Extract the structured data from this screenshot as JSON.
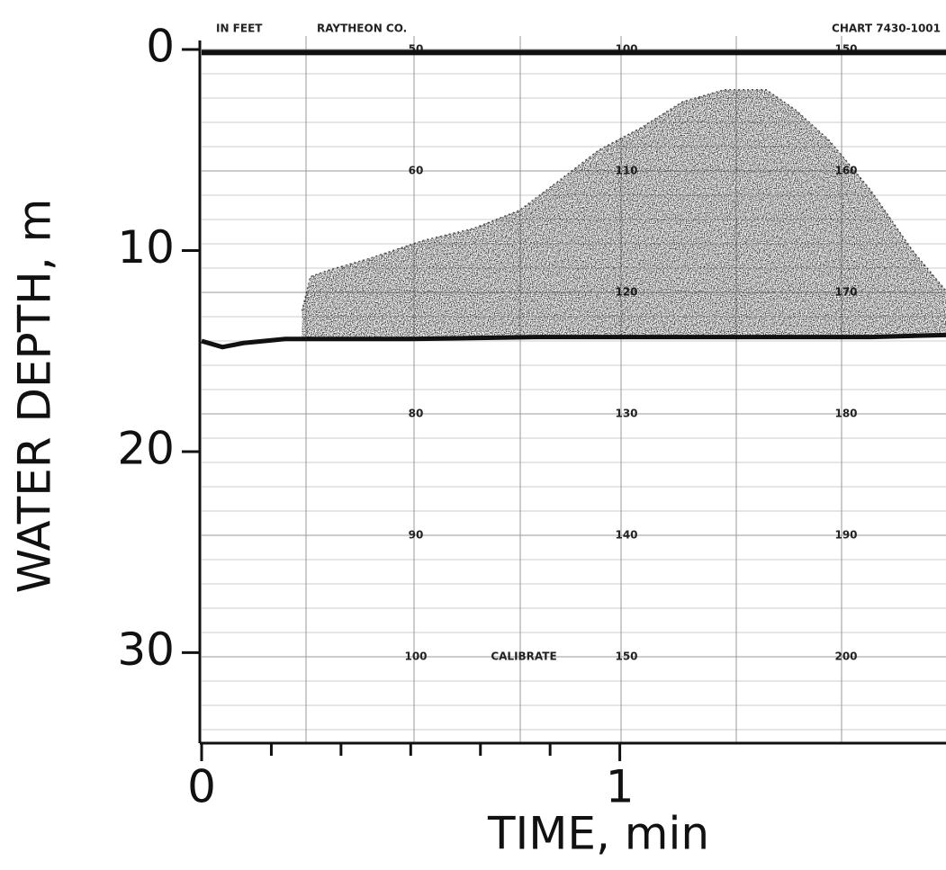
{
  "chart_data": {
    "type": "echogram",
    "y_label": "WATER DEPTH, m",
    "x_label": "TIME, min",
    "ylim": [
      0,
      34.5
    ],
    "yticks": [
      0,
      10,
      20,
      30
    ],
    "xlim": [
      0,
      1.78
    ],
    "xticks": [
      0,
      1
    ],
    "xminor_ticks": [
      0.1667,
      0.3333,
      0.5,
      0.6667,
      0.8333
    ],
    "paper_texts": [
      "IN FEET",
      "RAYTHEON CO.",
      "CHART 7430-1001",
      "CALIBRATE"
    ],
    "paper_scale": [
      [
        "50",
        "60",
        null,
        "80",
        "90",
        "100"
      ],
      [
        "100",
        "110",
        "120",
        "130",
        "140",
        "150"
      ],
      [
        "150",
        "160",
        "170",
        "180",
        "190",
        "200"
      ]
    ],
    "surface": {
      "x": [
        0,
        1.78
      ],
      "depth": [
        0.15,
        0.15
      ]
    },
    "bottom": {
      "x": [
        0,
        0.05,
        0.1,
        0.2,
        0.3,
        0.5,
        0.8,
        1.0,
        1.3,
        1.6,
        1.78
      ],
      "depth": [
        14.5,
        14.8,
        14.6,
        14.4,
        14.4,
        14.4,
        14.3,
        14.3,
        14.3,
        14.3,
        14.2
      ]
    },
    "layer": {
      "x": [
        0.24,
        0.26,
        0.3,
        0.4,
        0.53,
        0.65,
        0.76,
        0.85,
        0.95,
        1.05,
        1.15,
        1.25,
        1.35,
        1.42,
        1.5,
        1.6,
        1.7,
        1.78
      ],
      "top": [
        13.0,
        11.3,
        11.0,
        10.4,
        9.5,
        8.9,
        8.0,
        6.6,
        5.0,
        3.9,
        2.6,
        2.0,
        2.0,
        3.0,
        4.5,
        7.0,
        10.0,
        12.0
      ],
      "base": [
        14.3,
        14.3,
        14.3,
        14.3,
        14.3,
        14.3,
        14.3,
        14.3,
        14.3,
        14.3,
        14.3,
        14.3,
        14.3,
        14.3,
        14.3,
        14.3,
        14.3,
        14.3
      ]
    },
    "color": "#111111"
  }
}
